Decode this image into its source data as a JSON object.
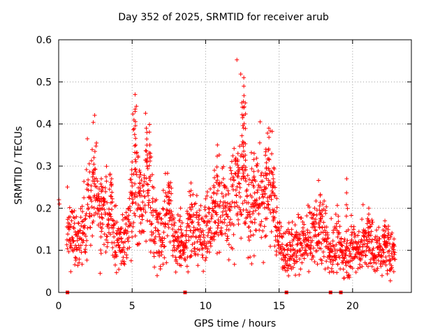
{
  "chart_data": {
    "type": "scatter",
    "title": "Day 352 of 2025, SRMTID for receiver arub",
    "xlabel": "GPS time / hours",
    "ylabel": "SRMTID / TECUs",
    "xlim": [
      0,
      24
    ],
    "ylim": [
      0,
      0.6
    ],
    "xticks": [
      0,
      5,
      10,
      15,
      20
    ],
    "yticks": [
      0,
      0.1,
      0.2,
      0.3,
      0.4,
      0.5,
      0.6
    ],
    "xtick_labels": [
      "0",
      "5",
      "10",
      "15",
      "20"
    ],
    "ytick_labels": [
      "0",
      "0.1",
      "0.2",
      "0.3",
      "0.4",
      "0.5",
      "0.6"
    ],
    "grid": true,
    "marker": "+",
    "color": "#ff0000",
    "zero_markers_x": [
      0.6,
      8.6,
      15.5,
      18.5,
      19.2
    ],
    "series": [
      {
        "name": "SRMTID",
        "profile": [
          [
            0.0,
            0.22
          ],
          [
            0.5,
            0.12
          ],
          [
            1.0,
            0.15
          ],
          [
            1.5,
            0.12
          ],
          [
            2.0,
            0.2
          ],
          [
            2.5,
            0.25
          ],
          [
            3.0,
            0.17
          ],
          [
            3.5,
            0.2
          ],
          [
            4.0,
            0.12
          ],
          [
            4.5,
            0.1
          ],
          [
            5.0,
            0.22
          ],
          [
            5.3,
            0.28
          ],
          [
            5.6,
            0.18
          ],
          [
            6.0,
            0.3
          ],
          [
            6.5,
            0.16
          ],
          [
            7.0,
            0.13
          ],
          [
            7.5,
            0.2
          ],
          [
            8.0,
            0.11
          ],
          [
            8.5,
            0.1
          ],
          [
            9.0,
            0.16
          ],
          [
            9.5,
            0.15
          ],
          [
            10.0,
            0.14
          ],
          [
            10.5,
            0.17
          ],
          [
            11.0,
            0.2
          ],
          [
            11.5,
            0.18
          ],
          [
            12.0,
            0.24
          ],
          [
            12.5,
            0.3
          ],
          [
            13.0,
            0.21
          ],
          [
            13.5,
            0.22
          ],
          [
            14.0,
            0.23
          ],
          [
            14.5,
            0.25
          ],
          [
            15.0,
            0.12
          ],
          [
            15.5,
            0.09
          ],
          [
            16.0,
            0.1
          ],
          [
            16.5,
            0.11
          ],
          [
            17.0,
            0.12
          ],
          [
            17.5,
            0.15
          ],
          [
            18.0,
            0.14
          ],
          [
            18.5,
            0.09
          ],
          [
            19.0,
            0.12
          ],
          [
            19.5,
            0.08
          ],
          [
            20.0,
            0.11
          ],
          [
            20.5,
            0.1
          ],
          [
            21.0,
            0.12
          ],
          [
            21.5,
            0.1
          ],
          [
            22.0,
            0.1
          ],
          [
            22.5,
            0.1
          ],
          [
            22.9,
            0.09
          ]
        ],
        "peaks": [
          [
            2.4,
            0.32
          ],
          [
            2.9,
            0.27
          ],
          [
            3.6,
            0.27
          ],
          [
            5.0,
            0.31
          ],
          [
            5.2,
            0.47
          ],
          [
            5.2,
            0.43
          ],
          [
            5.5,
            0.29
          ],
          [
            6.0,
            0.38
          ],
          [
            6.2,
            0.35
          ],
          [
            7.5,
            0.26
          ],
          [
            8.3,
            0.2
          ],
          [
            9.0,
            0.26
          ],
          [
            10.6,
            0.29
          ],
          [
            10.8,
            0.35
          ],
          [
            12.2,
            0.33
          ],
          [
            12.5,
            0.44
          ],
          [
            12.6,
            0.51
          ],
          [
            12.6,
            0.49
          ],
          [
            12.7,
            0.45
          ],
          [
            13.3,
            0.33
          ],
          [
            14.1,
            0.34
          ],
          [
            14.3,
            0.39
          ],
          [
            14.6,
            0.27
          ],
          [
            17.8,
            0.23
          ],
          [
            19.6,
            0.27
          ],
          [
            21.1,
            0.2
          ],
          [
            22.2,
            0.17
          ]
        ],
        "n_points": 1800
      }
    ]
  }
}
